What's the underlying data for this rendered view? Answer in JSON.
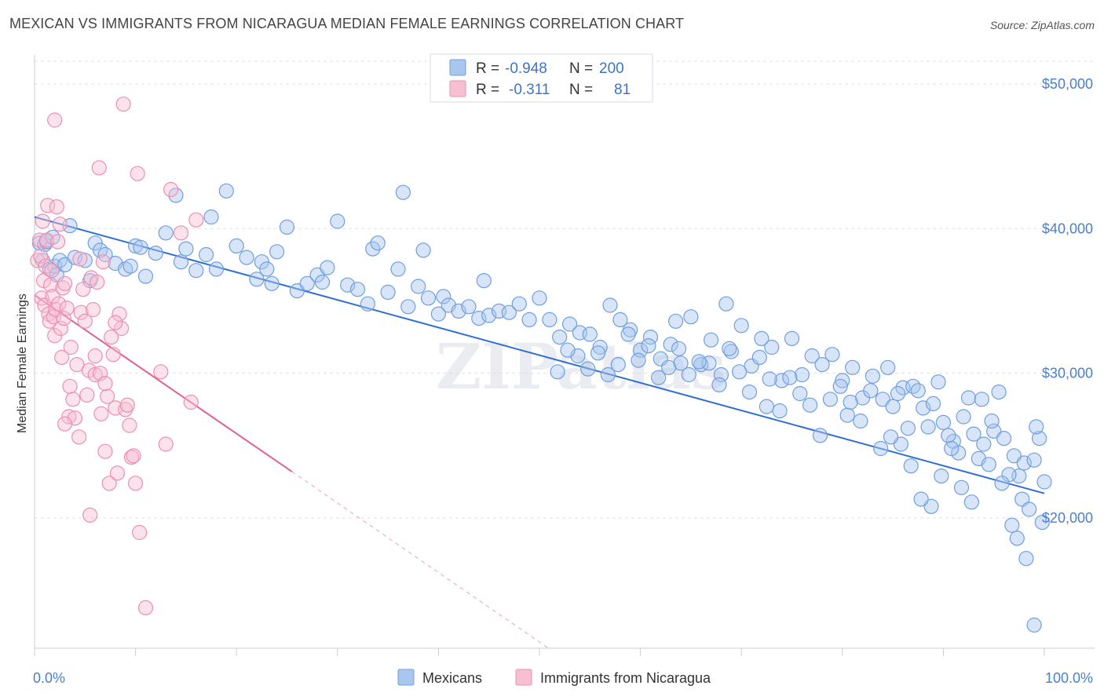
{
  "title": "MEXICAN VS IMMIGRANTS FROM NICARAGUA MEDIAN FEMALE EARNINGS CORRELATION CHART",
  "source": "Source: ZipAtlas.com",
  "watermark": "ZIPatlas",
  "colors": {
    "blue": "#6f9fe0",
    "blue_fill": "#a9c6ef",
    "blue_line": "#2f6fd0",
    "pink": "#ec8fb0",
    "pink_fill": "#f6bfd2",
    "pink_line": "#e0628e",
    "tick_text": "#4a7fd0",
    "grid": "#dde2ea"
  },
  "legend_top": {
    "rows": [
      {
        "r_label": "R =",
        "r_value": "-0.948",
        "n_label": "N =",
        "n_value": "200",
        "color": "blue"
      },
      {
        "r_label": "R =",
        "r_value": "-0.311",
        "n_label": "N =",
        "n_value": "81",
        "color": "pink"
      }
    ]
  },
  "legend_bottom": {
    "items": [
      {
        "label": "Mexicans",
        "color": "blue"
      },
      {
        "label": "Immigrants from Nicaragua",
        "color": "pink"
      }
    ]
  },
  "chart_data": {
    "type": "scatter",
    "title": "MEXICAN VS IMMIGRANTS FROM NICARAGUA MEDIAN FEMALE EARNINGS CORRELATION CHART",
    "xlabel": "",
    "ylabel": "Median Female Earnings",
    "xlim": [
      0,
      100
    ],
    "ylim": [
      11000,
      52000
    ],
    "x_tick_labels": [
      "0.0%",
      "100.0%"
    ],
    "y_ticks": [
      20000,
      30000,
      40000,
      50000
    ],
    "y_tick_labels": [
      "$20,000",
      "$30,000",
      "$40,000",
      "$50,000"
    ],
    "grid": true,
    "legend_placement": "top-center",
    "series": [
      {
        "name": "Mexicans",
        "color": "blue",
        "trend": {
          "x": [
            0,
            100
          ],
          "y": [
            40800,
            21700
          ]
        },
        "points": [
          [
            0.5,
            39000
          ],
          [
            0.8,
            37800
          ],
          [
            1.0,
            38900
          ],
          [
            1.2,
            39100
          ],
          [
            1.5,
            37200
          ],
          [
            1.8,
            39400
          ],
          [
            2.0,
            37400
          ],
          [
            2.2,
            36800
          ],
          [
            2.5,
            37800
          ],
          [
            3.0,
            37500
          ],
          [
            3.5,
            40200
          ],
          [
            4.0,
            38000
          ],
          [
            5.0,
            37800
          ],
          [
            5.5,
            36400
          ],
          [
            6.0,
            39000
          ],
          [
            6.5,
            38500
          ],
          [
            7.0,
            38200
          ],
          [
            8.0,
            37600
          ],
          [
            9.0,
            37200
          ],
          [
            9.5,
            37400
          ],
          [
            10.0,
            38800
          ],
          [
            10.5,
            38700
          ],
          [
            11.0,
            36700
          ],
          [
            12.0,
            38300
          ],
          [
            13.0,
            39700
          ],
          [
            14.0,
            42300
          ],
          [
            14.5,
            37700
          ],
          [
            15.0,
            38600
          ],
          [
            16.0,
            37100
          ],
          [
            17.0,
            38200
          ],
          [
            17.5,
            40800
          ],
          [
            18.0,
            37200
          ],
          [
            19.0,
            42600
          ],
          [
            20.0,
            38800
          ],
          [
            21.0,
            38000
          ],
          [
            22.0,
            36500
          ],
          [
            22.5,
            37700
          ],
          [
            23.0,
            37200
          ],
          [
            23.5,
            36200
          ],
          [
            24.0,
            38400
          ],
          [
            25.0,
            40100
          ],
          [
            26.0,
            35700
          ],
          [
            27.0,
            36200
          ],
          [
            28.0,
            36800
          ],
          [
            28.5,
            36300
          ],
          [
            29.0,
            37300
          ],
          [
            30.0,
            40500
          ],
          [
            31.0,
            36100
          ],
          [
            32.0,
            35800
          ],
          [
            33.0,
            34800
          ],
          [
            33.5,
            38600
          ],
          [
            34.0,
            39000
          ],
          [
            35.0,
            35600
          ],
          [
            36.0,
            37200
          ],
          [
            36.5,
            42500
          ],
          [
            37.0,
            34600
          ],
          [
            38.0,
            36000
          ],
          [
            38.5,
            38500
          ],
          [
            39.0,
            35200
          ],
          [
            40.0,
            34100
          ],
          [
            40.5,
            35300
          ],
          [
            41.0,
            34700
          ],
          [
            42.0,
            34300
          ],
          [
            43.0,
            34600
          ],
          [
            44.0,
            33800
          ],
          [
            44.5,
            36400
          ],
          [
            45.0,
            34000
          ],
          [
            46.0,
            34300
          ],
          [
            47.0,
            34200
          ],
          [
            48.0,
            34800
          ],
          [
            49.0,
            33700
          ],
          [
            50.0,
            35200
          ],
          [
            51.0,
            33700
          ],
          [
            52.0,
            32500
          ],
          [
            53.0,
            33400
          ],
          [
            54.0,
            32800
          ],
          [
            55.0,
            32700
          ],
          [
            56.0,
            31800
          ],
          [
            57.0,
            34700
          ],
          [
            58.0,
            33700
          ],
          [
            59.0,
            33000
          ],
          [
            60.0,
            31600
          ],
          [
            61.0,
            32500
          ],
          [
            62.0,
            31000
          ],
          [
            63.0,
            32000
          ],
          [
            63.5,
            33600
          ],
          [
            64.0,
            30700
          ],
          [
            65.0,
            33900
          ],
          [
            66.0,
            30600
          ],
          [
            67.0,
            32300
          ],
          [
            68.0,
            29900
          ],
          [
            68.5,
            34800
          ],
          [
            69.0,
            31500
          ],
          [
            70.0,
            33300
          ],
          [
            71.0,
            30500
          ],
          [
            72.0,
            32400
          ],
          [
            72.5,
            27700
          ],
          [
            73.0,
            31800
          ],
          [
            74.0,
            29500
          ],
          [
            75.0,
            32400
          ],
          [
            76.0,
            29900
          ],
          [
            77.0,
            31200
          ],
          [
            78.0,
            30600
          ],
          [
            79.0,
            31300
          ],
          [
            80.0,
            29500
          ],
          [
            80.5,
            27100
          ],
          [
            81.0,
            30400
          ],
          [
            82.0,
            28300
          ],
          [
            83.0,
            29800
          ],
          [
            84.0,
            28200
          ],
          [
            85.0,
            27700
          ],
          [
            86.0,
            29000
          ],
          [
            86.5,
            26200
          ],
          [
            87.0,
            29100
          ],
          [
            88.0,
            27600
          ],
          [
            89.0,
            27900
          ],
          [
            90.0,
            26600
          ],
          [
            91.0,
            25300
          ],
          [
            92.0,
            27000
          ],
          [
            93.0,
            25800
          ],
          [
            94.0,
            25100
          ],
          [
            95.0,
            26000
          ],
          [
            95.5,
            28700
          ],
          [
            96.0,
            25500
          ],
          [
            97.0,
            24300
          ],
          [
            97.5,
            22900
          ],
          [
            98.0,
            23800
          ],
          [
            99.0,
            24000
          ],
          [
            99.5,
            25500
          ],
          [
            100.0,
            22500
          ],
          [
            84.5,
            30400
          ],
          [
            85.5,
            28600
          ],
          [
            87.5,
            28800
          ],
          [
            88.5,
            26300
          ],
          [
            89.5,
            29400
          ],
          [
            90.5,
            25700
          ],
          [
            91.5,
            24500
          ],
          [
            92.5,
            28300
          ],
          [
            93.5,
            24100
          ],
          [
            94.5,
            23700
          ],
          [
            96.5,
            23000
          ],
          [
            97.8,
            21300
          ],
          [
            98.5,
            20600
          ],
          [
            99.2,
            26300
          ],
          [
            99.8,
            19700
          ],
          [
            96.8,
            19500
          ],
          [
            97.3,
            18600
          ],
          [
            98.2,
            17200
          ],
          [
            99.0,
            12600
          ],
          [
            95.8,
            22400
          ],
          [
            94.8,
            26700
          ],
          [
            93.8,
            28200
          ],
          [
            92.8,
            21100
          ],
          [
            91.8,
            22100
          ],
          [
            90.8,
            24800
          ],
          [
            89.8,
            22900
          ],
          [
            88.8,
            20800
          ],
          [
            87.8,
            21300
          ],
          [
            86.8,
            23600
          ],
          [
            85.8,
            25100
          ],
          [
            84.8,
            25600
          ],
          [
            83.8,
            24800
          ],
          [
            82.8,
            28800
          ],
          [
            81.8,
            26700
          ],
          [
            80.8,
            28000
          ],
          [
            79.8,
            29100
          ],
          [
            78.8,
            28200
          ],
          [
            77.8,
            25700
          ],
          [
            76.8,
            27800
          ],
          [
            75.8,
            28600
          ],
          [
            74.8,
            29700
          ],
          [
            73.8,
            27400
          ],
          [
            72.8,
            29600
          ],
          [
            71.8,
            31100
          ],
          [
            70.8,
            28700
          ],
          [
            69.8,
            30100
          ],
          [
            68.8,
            31700
          ],
          [
            67.8,
            29200
          ],
          [
            66.8,
            30700
          ],
          [
            65.8,
            30800
          ],
          [
            64.8,
            29900
          ],
          [
            63.8,
            31700
          ],
          [
            62.8,
            30400
          ],
          [
            61.8,
            29700
          ],
          [
            60.8,
            31900
          ],
          [
            59.8,
            30900
          ],
          [
            58.8,
            32700
          ],
          [
            57.8,
            30600
          ],
          [
            56.8,
            29900
          ],
          [
            55.8,
            31400
          ],
          [
            54.8,
            30300
          ],
          [
            53.8,
            31200
          ],
          [
            52.8,
            31600
          ],
          [
            51.8,
            30100
          ]
        ]
      },
      {
        "name": "Immigrants from Nicaragua",
        "color": "pink",
        "trend": {
          "x": [
            0,
            25.5
          ],
          "y": [
            35400,
            23200
          ]
        },
        "trend_dashed": {
          "x": [
            25.5,
            100
          ],
          "y": [
            23200,
            -12600
          ]
        },
        "points": [
          [
            0.3,
            37800
          ],
          [
            0.5,
            39200
          ],
          [
            0.6,
            38100
          ],
          [
            0.7,
            35200
          ],
          [
            0.8,
            40500
          ],
          [
            0.9,
            36400
          ],
          [
            1.0,
            34700
          ],
          [
            1.1,
            37400
          ],
          [
            1.2,
            39200
          ],
          [
            1.3,
            41600
          ],
          [
            1.4,
            34100
          ],
          [
            1.5,
            33600
          ],
          [
            1.6,
            36100
          ],
          [
            1.7,
            37100
          ],
          [
            1.8,
            35300
          ],
          [
            1.9,
            33900
          ],
          [
            2.0,
            32600
          ],
          [
            2.1,
            34400
          ],
          [
            2.2,
            41500
          ],
          [
            2.3,
            39100
          ],
          [
            2.4,
            34800
          ],
          [
            2.5,
            40300
          ],
          [
            2.6,
            33100
          ],
          [
            2.7,
            31100
          ],
          [
            2.8,
            35900
          ],
          [
            2.9,
            33800
          ],
          [
            3.0,
            36200
          ],
          [
            3.2,
            34500
          ],
          [
            3.4,
            27000
          ],
          [
            3.5,
            29100
          ],
          [
            3.6,
            31800
          ],
          [
            3.8,
            28200
          ],
          [
            4.0,
            26900
          ],
          [
            4.2,
            30600
          ],
          [
            4.4,
            25600
          ],
          [
            4.6,
            34200
          ],
          [
            4.8,
            35800
          ],
          [
            5.0,
            33600
          ],
          [
            5.2,
            28500
          ],
          [
            5.4,
            30200
          ],
          [
            5.6,
            36600
          ],
          [
            5.8,
            34400
          ],
          [
            6.0,
            29900
          ],
          [
            6.2,
            36300
          ],
          [
            6.4,
            44200
          ],
          [
            6.5,
            30000
          ],
          [
            6.6,
            27200
          ],
          [
            6.8,
            37700
          ],
          [
            7.0,
            24600
          ],
          [
            7.2,
            28400
          ],
          [
            7.4,
            22400
          ],
          [
            7.6,
            32500
          ],
          [
            7.8,
            31300
          ],
          [
            8.0,
            27600
          ],
          [
            8.2,
            23100
          ],
          [
            8.4,
            34100
          ],
          [
            8.6,
            33100
          ],
          [
            8.8,
            48600
          ],
          [
            9.0,
            27500
          ],
          [
            9.2,
            27800
          ],
          [
            9.4,
            26400
          ],
          [
            9.6,
            24200
          ],
          [
            9.8,
            24300
          ],
          [
            10.0,
            22400
          ],
          [
            10.2,
            43800
          ],
          [
            10.4,
            19000
          ],
          [
            11.0,
            13800
          ],
          [
            12.5,
            30100
          ],
          [
            13.0,
            25100
          ],
          [
            13.5,
            42700
          ],
          [
            14.5,
            39700
          ],
          [
            15.5,
            28000
          ],
          [
            16.0,
            40600
          ],
          [
            2.0,
            47500
          ],
          [
            5.5,
            20200
          ],
          [
            7.0,
            29300
          ],
          [
            8.0,
            33500
          ],
          [
            3.0,
            26500
          ],
          [
            4.5,
            37900
          ],
          [
            6.0,
            31200
          ]
        ]
      }
    ]
  }
}
